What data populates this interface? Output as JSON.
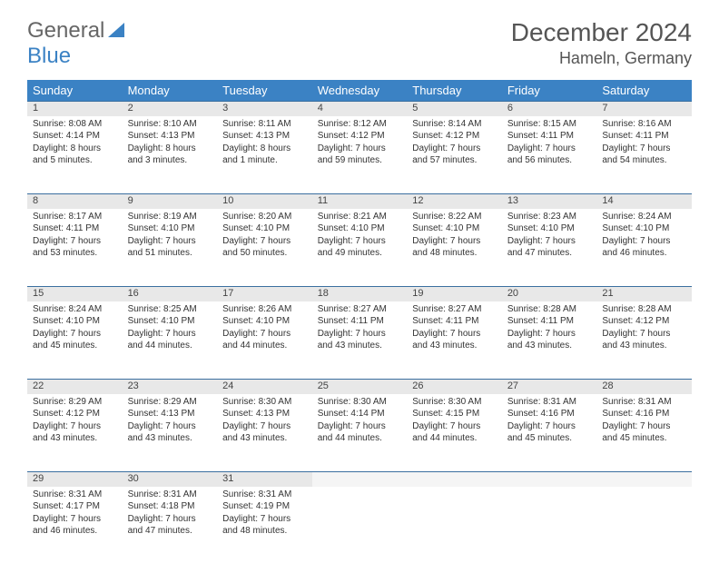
{
  "brand": {
    "part1": "General",
    "part2": "Blue"
  },
  "header": {
    "month_title": "December 2024",
    "location": "Hameln, Germany"
  },
  "colors": {
    "header_bg": "#3b82c4",
    "header_text": "#ffffff",
    "daynum_bg": "#e8e8e8",
    "row_divider": "#3b6fa0",
    "text": "#333333",
    "title_text": "#555555"
  },
  "daynames": [
    "Sunday",
    "Monday",
    "Tuesday",
    "Wednesday",
    "Thursday",
    "Friday",
    "Saturday"
  ],
  "weeks": [
    {
      "days": [
        {
          "n": "1",
          "sunrise": "Sunrise: 8:08 AM",
          "sunset": "Sunset: 4:14 PM",
          "daylight": "Daylight: 8 hours and 5 minutes."
        },
        {
          "n": "2",
          "sunrise": "Sunrise: 8:10 AM",
          "sunset": "Sunset: 4:13 PM",
          "daylight": "Daylight: 8 hours and 3 minutes."
        },
        {
          "n": "3",
          "sunrise": "Sunrise: 8:11 AM",
          "sunset": "Sunset: 4:13 PM",
          "daylight": "Daylight: 8 hours and 1 minute."
        },
        {
          "n": "4",
          "sunrise": "Sunrise: 8:12 AM",
          "sunset": "Sunset: 4:12 PM",
          "daylight": "Daylight: 7 hours and 59 minutes."
        },
        {
          "n": "5",
          "sunrise": "Sunrise: 8:14 AM",
          "sunset": "Sunset: 4:12 PM",
          "daylight": "Daylight: 7 hours and 57 minutes."
        },
        {
          "n": "6",
          "sunrise": "Sunrise: 8:15 AM",
          "sunset": "Sunset: 4:11 PM",
          "daylight": "Daylight: 7 hours and 56 minutes."
        },
        {
          "n": "7",
          "sunrise": "Sunrise: 8:16 AM",
          "sunset": "Sunset: 4:11 PM",
          "daylight": "Daylight: 7 hours and 54 minutes."
        }
      ]
    },
    {
      "days": [
        {
          "n": "8",
          "sunrise": "Sunrise: 8:17 AM",
          "sunset": "Sunset: 4:11 PM",
          "daylight": "Daylight: 7 hours and 53 minutes."
        },
        {
          "n": "9",
          "sunrise": "Sunrise: 8:19 AM",
          "sunset": "Sunset: 4:10 PM",
          "daylight": "Daylight: 7 hours and 51 minutes."
        },
        {
          "n": "10",
          "sunrise": "Sunrise: 8:20 AM",
          "sunset": "Sunset: 4:10 PM",
          "daylight": "Daylight: 7 hours and 50 minutes."
        },
        {
          "n": "11",
          "sunrise": "Sunrise: 8:21 AM",
          "sunset": "Sunset: 4:10 PM",
          "daylight": "Daylight: 7 hours and 49 minutes."
        },
        {
          "n": "12",
          "sunrise": "Sunrise: 8:22 AM",
          "sunset": "Sunset: 4:10 PM",
          "daylight": "Daylight: 7 hours and 48 minutes."
        },
        {
          "n": "13",
          "sunrise": "Sunrise: 8:23 AM",
          "sunset": "Sunset: 4:10 PM",
          "daylight": "Daylight: 7 hours and 47 minutes."
        },
        {
          "n": "14",
          "sunrise": "Sunrise: 8:24 AM",
          "sunset": "Sunset: 4:10 PM",
          "daylight": "Daylight: 7 hours and 46 minutes."
        }
      ]
    },
    {
      "days": [
        {
          "n": "15",
          "sunrise": "Sunrise: 8:24 AM",
          "sunset": "Sunset: 4:10 PM",
          "daylight": "Daylight: 7 hours and 45 minutes."
        },
        {
          "n": "16",
          "sunrise": "Sunrise: 8:25 AM",
          "sunset": "Sunset: 4:10 PM",
          "daylight": "Daylight: 7 hours and 44 minutes."
        },
        {
          "n": "17",
          "sunrise": "Sunrise: 8:26 AM",
          "sunset": "Sunset: 4:10 PM",
          "daylight": "Daylight: 7 hours and 44 minutes."
        },
        {
          "n": "18",
          "sunrise": "Sunrise: 8:27 AM",
          "sunset": "Sunset: 4:11 PM",
          "daylight": "Daylight: 7 hours and 43 minutes."
        },
        {
          "n": "19",
          "sunrise": "Sunrise: 8:27 AM",
          "sunset": "Sunset: 4:11 PM",
          "daylight": "Daylight: 7 hours and 43 minutes."
        },
        {
          "n": "20",
          "sunrise": "Sunrise: 8:28 AM",
          "sunset": "Sunset: 4:11 PM",
          "daylight": "Daylight: 7 hours and 43 minutes."
        },
        {
          "n": "21",
          "sunrise": "Sunrise: 8:28 AM",
          "sunset": "Sunset: 4:12 PM",
          "daylight": "Daylight: 7 hours and 43 minutes."
        }
      ]
    },
    {
      "days": [
        {
          "n": "22",
          "sunrise": "Sunrise: 8:29 AM",
          "sunset": "Sunset: 4:12 PM",
          "daylight": "Daylight: 7 hours and 43 minutes."
        },
        {
          "n": "23",
          "sunrise": "Sunrise: 8:29 AM",
          "sunset": "Sunset: 4:13 PM",
          "daylight": "Daylight: 7 hours and 43 minutes."
        },
        {
          "n": "24",
          "sunrise": "Sunrise: 8:30 AM",
          "sunset": "Sunset: 4:13 PM",
          "daylight": "Daylight: 7 hours and 43 minutes."
        },
        {
          "n": "25",
          "sunrise": "Sunrise: 8:30 AM",
          "sunset": "Sunset: 4:14 PM",
          "daylight": "Daylight: 7 hours and 44 minutes."
        },
        {
          "n": "26",
          "sunrise": "Sunrise: 8:30 AM",
          "sunset": "Sunset: 4:15 PM",
          "daylight": "Daylight: 7 hours and 44 minutes."
        },
        {
          "n": "27",
          "sunrise": "Sunrise: 8:31 AM",
          "sunset": "Sunset: 4:16 PM",
          "daylight": "Daylight: 7 hours and 45 minutes."
        },
        {
          "n": "28",
          "sunrise": "Sunrise: 8:31 AM",
          "sunset": "Sunset: 4:16 PM",
          "daylight": "Daylight: 7 hours and 45 minutes."
        }
      ]
    },
    {
      "days": [
        {
          "n": "29",
          "sunrise": "Sunrise: 8:31 AM",
          "sunset": "Sunset: 4:17 PM",
          "daylight": "Daylight: 7 hours and 46 minutes."
        },
        {
          "n": "30",
          "sunrise": "Sunrise: 8:31 AM",
          "sunset": "Sunset: 4:18 PM",
          "daylight": "Daylight: 7 hours and 47 minutes."
        },
        {
          "n": "31",
          "sunrise": "Sunrise: 8:31 AM",
          "sunset": "Sunset: 4:19 PM",
          "daylight": "Daylight: 7 hours and 48 minutes."
        },
        {
          "n": "",
          "sunrise": "",
          "sunset": "",
          "daylight": "",
          "empty": true
        },
        {
          "n": "",
          "sunrise": "",
          "sunset": "",
          "daylight": "",
          "empty": true
        },
        {
          "n": "",
          "sunrise": "",
          "sunset": "",
          "daylight": "",
          "empty": true
        },
        {
          "n": "",
          "sunrise": "",
          "sunset": "",
          "daylight": "",
          "empty": true
        }
      ]
    }
  ]
}
